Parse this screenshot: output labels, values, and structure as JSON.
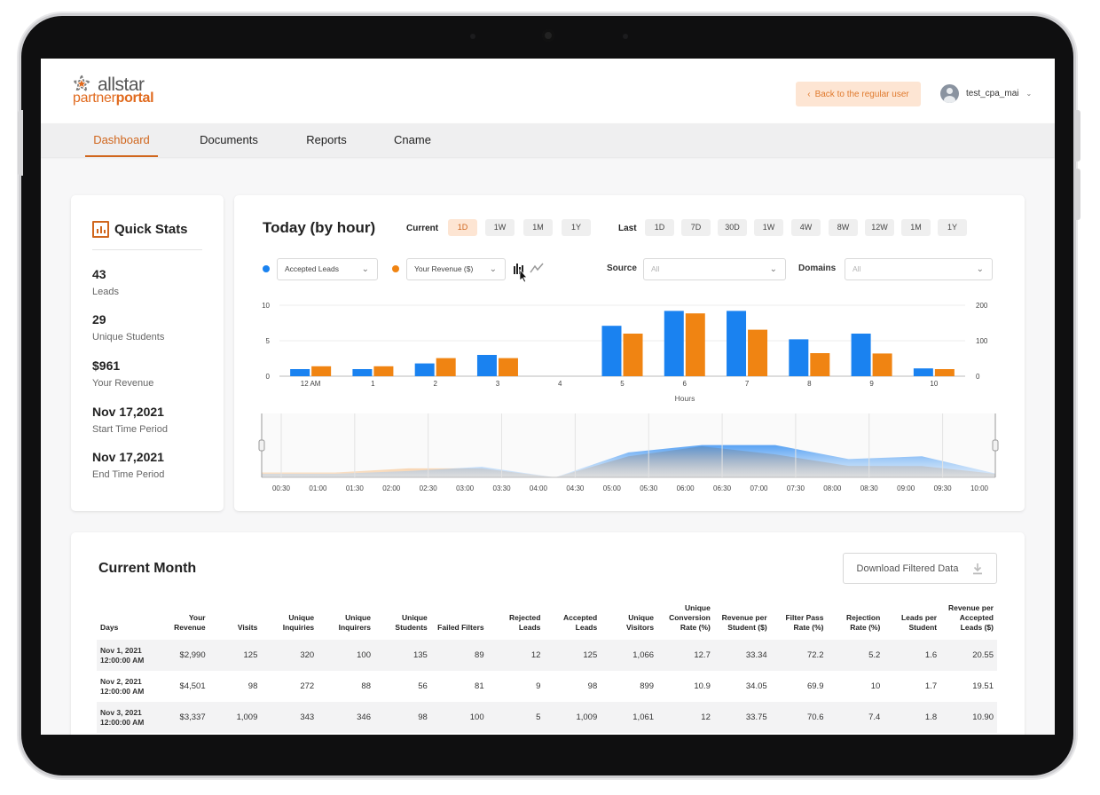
{
  "brand": {
    "name": "allstar",
    "sub_light": "partner",
    "sub_bold": "portal",
    "accent_color": "#d0661d"
  },
  "topbar": {
    "back_label": "Back to the regular user",
    "user_name": "test_cpa_mai"
  },
  "nav": {
    "items": [
      {
        "label": "Dashboard",
        "active": true
      },
      {
        "label": "Documents",
        "active": false
      },
      {
        "label": "Reports",
        "active": false
      },
      {
        "label": "Cname",
        "active": false
      }
    ]
  },
  "quick_stats": {
    "title": "Quick Stats",
    "stats": [
      {
        "value": "43",
        "label": "Leads"
      },
      {
        "value": "29",
        "label": "Unique Students"
      },
      {
        "value": "$961",
        "label": "Your Revenue"
      },
      {
        "value": "Nov 17,2021",
        "label": "Start Time Period"
      },
      {
        "value": "Nov 17,2021",
        "label": "End Time Period"
      }
    ]
  },
  "chart_panel": {
    "title": "Today (by hour)",
    "current_label": "Current",
    "current_ranges": [
      "1D",
      "1W",
      "1M",
      "1Y"
    ],
    "current_selected": "1D",
    "last_label": "Last",
    "last_ranges": [
      "1D",
      "7D",
      "30D",
      "1W",
      "4W",
      "8W",
      "12W",
      "1M",
      "1Y"
    ],
    "metric_left": "Accepted Leads",
    "metric_right": "Your Revenue ($)",
    "source_label": "Source",
    "source_placeholder": "All",
    "domains_label": "Domains",
    "domains_placeholder": "All",
    "icons": {
      "bar": "bar-chart-icon",
      "line": "line-chart-icon",
      "cursor": "pointer-cursor-icon"
    }
  },
  "chart_data": {
    "type": "bar",
    "categories": [
      "12 AM",
      "1",
      "2",
      "3",
      "4",
      "5",
      "6",
      "7",
      "8",
      "9",
      "10"
    ],
    "xlabel": "Hours",
    "series": [
      {
        "name": "Accepted Leads",
        "axis": "left",
        "color": "#1a82f0",
        "values": [
          1,
          1,
          1.8,
          3,
          0,
          7.1,
          9.2,
          9.2,
          5.2,
          6,
          1.1
        ]
      },
      {
        "name": "Your Revenue ($)",
        "axis": "right",
        "color": "#f08412",
        "values": [
          28,
          28,
          51,
          51,
          0,
          120,
          177,
          131,
          65,
          64,
          20
        ]
      }
    ],
    "ylim_left": [
      0,
      10
    ],
    "yticks_left": [
      0,
      5,
      10
    ],
    "ylim_right": [
      0,
      200
    ],
    "yticks_right": [
      0,
      100,
      200
    ],
    "navigator_ticks": [
      "00:30",
      "01:00",
      "01:30",
      "02:00",
      "02:30",
      "03:00",
      "03:30",
      "04:00",
      "04:30",
      "05:00",
      "05:30",
      "06:00",
      "06:30",
      "07:00",
      "07:30",
      "08:00",
      "08:30",
      "09:00",
      "09:30",
      "10:00"
    ]
  },
  "current_month": {
    "title": "Current Month",
    "download_label": "Download Filtered Data",
    "columns": [
      "Days",
      "Your Revenue",
      "Visits",
      "Unique Inquiries",
      "Unique Inquirers",
      "Unique Students",
      "Failed Filters",
      "Rejected Leads",
      "Accepted Leads",
      "Unique Visitors",
      "Unique Conversion Rate (%)",
      "Revenue per Student ($)",
      "Filter Pass Rate (%)",
      "Rejection Rate (%)",
      "Leads per Student",
      "Revenue per Accepted Leads ($)"
    ],
    "rows": [
      [
        "Nov 1, 2021 12:00:00 AM",
        "$2,990",
        "125",
        "320",
        "100",
        "135",
        "89",
        "12",
        "125",
        "1,066",
        "12.7",
        "33.34",
        "72.2",
        "5.2",
        "1.6",
        "20.55"
      ],
      [
        "Nov 2, 2021 12:00:00 AM",
        "$4,501",
        "98",
        "272",
        "88",
        "56",
        "81",
        "9",
        "98",
        "899",
        "10.9",
        "34.05",
        "69.9",
        "10",
        "1.7",
        "19.51"
      ],
      [
        "Nov 3, 2021 12:00:00 AM",
        "$3,337",
        "1,009",
        "343",
        "346",
        "98",
        "100",
        "5",
        "1,009",
        "1,061",
        "12",
        "33.75",
        "70.6",
        "7.4",
        "1.8",
        "10.90"
      ]
    ]
  }
}
